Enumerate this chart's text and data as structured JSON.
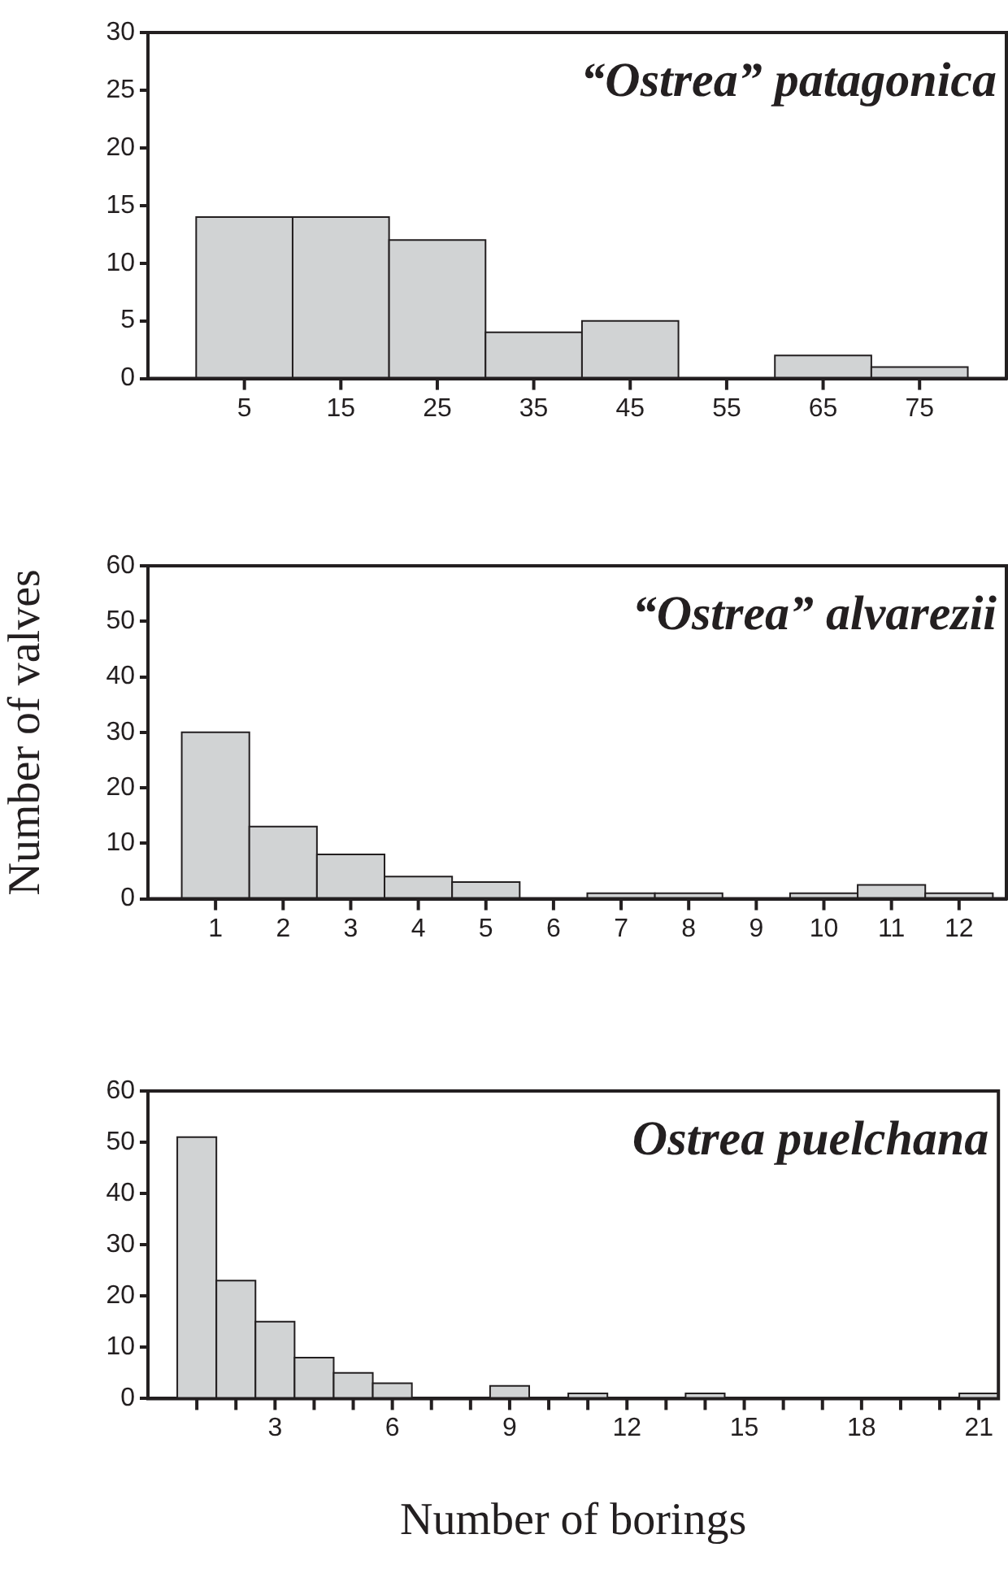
{
  "chart_data": [
    {
      "type": "histogram",
      "title": "“Ostrea” patagonica",
      "bins": [
        0,
        10,
        20,
        30,
        40,
        50,
        60,
        70,
        80
      ],
      "values": [
        14,
        14,
        12,
        4,
        5,
        0,
        2,
        1
      ],
      "color": "#d1d3d4",
      "xlim": [
        -5,
        84
      ],
      "xticks": [
        5,
        15,
        25,
        35,
        45,
        55,
        65,
        75
      ],
      "ylim": [
        0,
        30
      ],
      "yticks": [
        0,
        5,
        10,
        15,
        20,
        25,
        30
      ],
      "grid": false,
      "legend": false
    },
    {
      "type": "histogram",
      "title": "“Ostrea” alvarezii",
      "ylabel": "Number of valves",
      "bins": [
        0.5,
        1.5,
        2.5,
        3.5,
        4.5,
        5.5,
        6.5,
        7.5,
        8.5,
        9.5,
        10.5,
        11.5,
        12.5
      ],
      "values": [
        30,
        13,
        8,
        4,
        3,
        0,
        1,
        1,
        0,
        1,
        2.5,
        1
      ],
      "color": "#d1d3d4",
      "xlim": [
        0,
        12.7
      ],
      "xticks": [
        1,
        2,
        3,
        4,
        5,
        6,
        7,
        8,
        9,
        10,
        11,
        12
      ],
      "ylim": [
        0,
        60
      ],
      "yticks": [
        0,
        10,
        20,
        30,
        40,
        50,
        60
      ],
      "grid": false,
      "legend": false
    },
    {
      "type": "histogram",
      "title": "Ostrea puelchana",
      "xlabel": "Number of borings",
      "bins": [
        0.5,
        1.5,
        2.5,
        3.5,
        4.5,
        5.5,
        6.5,
        7.5,
        8.5,
        9.5,
        10.5,
        11.5,
        12.5,
        13.5,
        14.5,
        15.5,
        16.5,
        17.5,
        18.5,
        19.5,
        20.5,
        21.5
      ],
      "values": [
        51,
        23,
        15,
        8,
        5,
        3,
        0,
        0,
        2.5,
        0,
        1,
        0,
        0,
        1,
        0,
        0,
        0,
        0,
        0,
        0,
        1
      ],
      "color": "#d1d3d4",
      "xlim": [
        -0.25,
        21.5
      ],
      "xticks": [
        {
          "value": 1,
          "label": null
        },
        {
          "value": 2,
          "label": null
        },
        3,
        {
          "value": 4,
          "label": null
        },
        {
          "value": 5,
          "label": null
        },
        6,
        {
          "value": 7,
          "label": null
        },
        {
          "value": 8,
          "label": null
        },
        9,
        {
          "value": 10,
          "label": null
        },
        {
          "value": 11,
          "label": null
        },
        12,
        {
          "value": 13,
          "label": null
        },
        {
          "value": 14,
          "label": null
        },
        15,
        {
          "value": 16,
          "label": null
        },
        {
          "value": 17,
          "label": null
        },
        18,
        {
          "value": 19,
          "label": null
        },
        {
          "value": 20,
          "label": null
        },
        21
      ],
      "ylim": [
        0,
        60
      ],
      "yticks": [
        0,
        10,
        20,
        30,
        40,
        50,
        60
      ],
      "grid": false,
      "legend": false
    }
  ]
}
